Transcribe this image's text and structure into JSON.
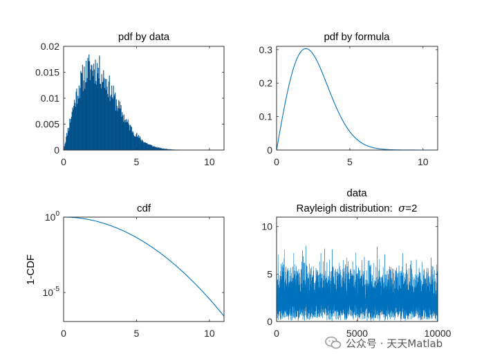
{
  "colors": {
    "series": "#0072BD",
    "axis": "#262626"
  },
  "watermark": {
    "text": "公众号 · 天天Matlab",
    "icon": "wechat-chat-bubbles-icon"
  },
  "chart_data": [
    {
      "id": "pdf-data",
      "type": "bar",
      "title": "pdf by data",
      "xlim": [
        0,
        11
      ],
      "ylim": [
        0,
        0.02
      ],
      "xticks": [
        0,
        5,
        10
      ],
      "xtick_labels": [
        "0",
        "5",
        "10"
      ],
      "yticks": [
        0,
        0.005,
        0.01,
        0.015,
        0.02
      ],
      "ytick_labels": [
        "0",
        "0.005",
        "0.01",
        "0.015",
        "0.02"
      ],
      "bin_width": 0.04,
      "envelope": {
        "distribution": "rayleigh",
        "sigma": 2,
        "scale": 0.0121,
        "noise": 0.13
      }
    },
    {
      "id": "pdf-formula",
      "type": "line",
      "title": "pdf by formula",
      "xlim": [
        0,
        11
      ],
      "ylim": [
        0,
        0.31
      ],
      "xticks": [
        0,
        5,
        10
      ],
      "xtick_labels": [
        "0",
        "5",
        "10"
      ],
      "yticks": [
        0,
        0.1,
        0.2,
        0.3
      ],
      "ytick_labels": [
        "0",
        "0.1",
        "0.2",
        "0.3"
      ],
      "x": [
        0,
        0.5,
        1,
        1.5,
        2,
        2.5,
        3,
        3.5,
        4,
        4.5,
        5,
        5.5,
        6,
        6.5,
        7,
        7.5,
        8,
        8.5,
        9,
        9.5,
        10,
        10.5,
        11
      ],
      "y": [
        0,
        0.121,
        0.221,
        0.283,
        0.303,
        0.286,
        0.243,
        0.19,
        0.135,
        0.09,
        0.055,
        0.031,
        0.017,
        0.0083,
        0.0038,
        0.0016,
        0.0007,
        0.0003,
        0.0001,
        3e-05,
        1e-05,
        0,
        0
      ]
    },
    {
      "id": "cdf",
      "type": "line",
      "title": "cdf",
      "ylabel": "1-CDF",
      "yscale": "log",
      "xlim": [
        0,
        11
      ],
      "ylim": [
        1.2e-07,
        1
      ],
      "xticks": [
        0,
        5,
        10
      ],
      "xtick_labels": [
        "0",
        "5",
        "10"
      ],
      "ytick_labels": [
        {
          "base": "10",
          "exp": "0",
          "value": 1
        },
        {
          "base": "10",
          "exp": "-5",
          "value": 1e-05
        }
      ],
      "x": [
        0,
        0.5,
        1,
        1.5,
        2,
        2.5,
        3,
        3.5,
        4,
        4.5,
        5,
        5.5,
        6,
        6.5,
        7,
        7.5,
        8,
        8.5,
        9,
        9.5,
        10,
        10.5,
        11
      ],
      "y": [
        1,
        0.969,
        0.8825,
        0.7548,
        0.6065,
        0.4578,
        0.3247,
        0.2163,
        0.1353,
        0.0796,
        0.0439,
        0.0228,
        0.0111,
        0.00509,
        0.00219,
        0.000888,
        0.000335,
        0.000119,
        3.98e-05,
        1.24e-05,
        3.73e-06,
        1.03e-06,
        2.7e-07
      ]
    },
    {
      "id": "data",
      "type": "line",
      "title": "data",
      "subtitle_prefix": "Rayleigh distribution:  ",
      "subtitle_symbol": "σ",
      "subtitle_suffix": "=2",
      "xlim": [
        0,
        10000
      ],
      "ylim": [
        0,
        11
      ],
      "xticks": [
        0,
        5000,
        10000
      ],
      "xtick_labels": [
        "0",
        "5000",
        "10000"
      ],
      "yticks": [
        0,
        5,
        10
      ],
      "ytick_labels": [
        "0",
        "5",
        "10"
      ],
      "n_samples": 10000,
      "sigma": 2,
      "seed": 7
    }
  ]
}
